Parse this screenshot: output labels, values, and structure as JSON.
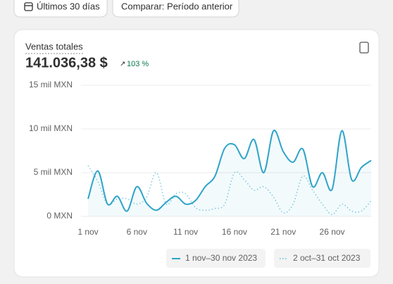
{
  "toolbar": {
    "date_range": "Últimos 30 días",
    "compare": "Comparar: Período anterior"
  },
  "chart_data": {
    "type": "line",
    "title": "Ventas totales",
    "total": "141.036,38 $",
    "change": "103 %",
    "categories": [
      "1 nov",
      null,
      null,
      null,
      null,
      "6 nov",
      null,
      null,
      null,
      null,
      "11 nov",
      null,
      null,
      null,
      null,
      "16 nov",
      null,
      null,
      null,
      null,
      "21 nov",
      null,
      null,
      null,
      null,
      "26 nov",
      null,
      null,
      null,
      null
    ],
    "series": [
      {
        "name": "1 nov–30 nov 2023",
        "color": "#2ea4c9",
        "style": "solid",
        "values": [
          2000,
          5200,
          1400,
          2300,
          600,
          3400,
          1500,
          700,
          1600,
          2300,
          1400,
          1800,
          3400,
          4600,
          7800,
          8200,
          6600,
          8800,
          5000,
          9800,
          7400,
          6200,
          7700,
          3400,
          5000,
          3100,
          9800,
          4200,
          5600,
          6400
        ]
      },
      {
        "name": "2 oct–31 oct 2023",
        "color": "#7ccbe0",
        "style": "dotted",
        "values": [
          5800,
          4000,
          1400,
          2000,
          2000,
          1400,
          2200,
          5000,
          1400,
          2600,
          2600,
          1000,
          700,
          900,
          1400,
          5000,
          4200,
          3000,
          3400,
          2200,
          400,
          1400,
          4600,
          3000,
          1400,
          200,
          1400,
          600,
          600,
          1800
        ]
      }
    ],
    "ylim": [
      0,
      15000
    ],
    "yticks": [
      {
        "value": 0,
        "label": "0 MXN"
      },
      {
        "value": 5000,
        "label": "5 mil MXN"
      },
      {
        "value": 10000,
        "label": "10 mil MXN"
      },
      {
        "value": 15000,
        "label": "15 mil MXN"
      }
    ],
    "grid": true
  }
}
